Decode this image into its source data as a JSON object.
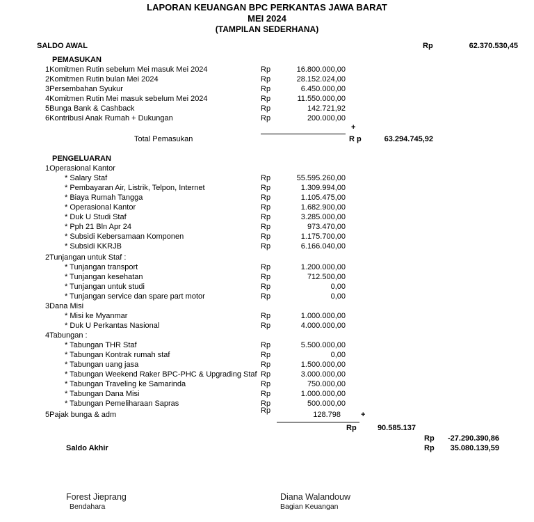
{
  "document": {
    "title_line1": "LAPORAN KEUANGAN BPC PERKANTAS JAWA BARAT",
    "title_line2": "MEI 2024",
    "title_line3": "(TAMPILAN SEDERHANA)",
    "saldo_awal": {
      "label": "SALDO AWAL",
      "currency": "Rp",
      "amount": "62.370.530,45"
    },
    "pemasukan": {
      "header": "PEMASUKAN",
      "items": [
        {
          "no": "1",
          "label": "Komitmen Rutin sebelum Mei masuk Mei 2024",
          "currency": "Rp",
          "amount": "16.800.000,00"
        },
        {
          "no": "2",
          "label": "Komitmen Rutin bulan Mei 2024",
          "currency": "Rp",
          "amount": "28.152.024,00"
        },
        {
          "no": "3",
          "label": "Persembahan Syukur",
          "currency": "Rp",
          "amount": "6.450.000,00"
        },
        {
          "no": "4",
          "label": "Komitmen Rutin Mei masuk sebelum Mei 2024",
          "currency": "Rp",
          "amount": "11.550.000,00"
        },
        {
          "no": "5",
          "label": "Bunga Bank & Cashback",
          "currency": "Rp",
          "amount": "142.721,92"
        },
        {
          "no": "6",
          "label": "Kontribusi Anak Rumah + Dukungan",
          "currency": "Rp",
          "amount": "200.000,00"
        }
      ],
      "plus_sign": "+",
      "total": {
        "label": "Total Pemasukan",
        "currency": "R p",
        "amount": "63.294.745,92"
      }
    },
    "pengeluaran": {
      "header": "PENGELUARAN",
      "bullet": "*",
      "groups": [
        {
          "no": "1",
          "label": "Operasional Kantor",
          "items": [
            {
              "label": "Salary Staf",
              "currency": "Rp",
              "amount": "55.595.260,00"
            },
            {
              "label": "Pembayaran Air, Listrik, Telpon, Internet",
              "currency": "Rp",
              "amount": "1.309.994,00"
            },
            {
              "label": "Biaya Rumah Tangga",
              "currency": "Rp",
              "amount": "1.105.475,00"
            },
            {
              "label": "Operasional Kantor",
              "currency": "Rp",
              "amount": "1.682.900,00"
            },
            {
              "label": "Duk U Studi Staf",
              "currency": "Rp",
              "amount": "3.285.000,00"
            },
            {
              "label": "Pph 21 Bln Apr 24",
              "currency": "Rp",
              "amount": "973.470,00"
            },
            {
              "label": "Subsidi Kebersamaan Komponen",
              "currency": "Rp",
              "amount": "1.175.700,00"
            },
            {
              "label": "Subsidi KKRJB",
              "currency": "Rp",
              "amount": "6.166.040,00"
            }
          ]
        },
        {
          "no": "2",
          "label": "Tunjangan untuk Staf :",
          "items": [
            {
              "label": "Tunjangan transport",
              "currency": "Rp",
              "amount": "1.200.000,00"
            },
            {
              "label": "Tunjangan kesehatan",
              "currency": "Rp",
              "amount": "712.500,00"
            },
            {
              "label": "Tunjangan untuk studi",
              "currency": "Rp",
              "amount": "0,00"
            },
            {
              "label": "Tunjangan service dan spare part motor",
              "currency": "Rp",
              "amount": "0,00"
            }
          ]
        },
        {
          "no": "3",
          "label": "Dana Misi",
          "items": [
            {
              "label": "Misi ke Myanmar",
              "currency": "Rp",
              "amount": "1.000.000,00"
            },
            {
              "label": "Duk U Perkantas Nasional",
              "currency": "Rp",
              "amount": "4.000.000,00"
            }
          ]
        },
        {
          "no": "4",
          "label": "Tabungan :",
          "items": [
            {
              "label": "Tabungan THR Staf",
              "currency": "Rp",
              "amount": "5.500.000,00"
            },
            {
              "label": "Tabungan Kontrak rumah staf",
              "currency": "Rp",
              "amount": "0,00"
            },
            {
              "label": "Tabungan uang jasa",
              "currency": "Rp",
              "amount": "1.500.000,00"
            },
            {
              "label": "Tabungan Weekend Raker BPC-PHC & Upgrading Staf",
              "currency": "Rp",
              "amount": "3.000.000,00"
            },
            {
              "label": "Tabungan Traveling ke Samarinda",
              "currency": "Rp",
              "amount": "750.000,00"
            },
            {
              "label": "Tabungan Dana Misi",
              "currency": "Rp",
              "amount": "1.000.000,00"
            },
            {
              "label": "Tabungan Pemeliharaan Sapras",
              "currency": "Rp",
              "amount": "500.000,00"
            }
          ]
        }
      ],
      "tax_item": {
        "no": "5",
        "label": "Pajak bunga & adm",
        "currency": "Rp",
        "amount": "128.798"
      },
      "plus_sign": "+",
      "total": {
        "currency": "Rp",
        "amount": "90.585.137"
      }
    },
    "summary": {
      "selisih": {
        "currency": "Rp",
        "amount": "-27.290.390,86"
      },
      "saldo_akhir": {
        "label": "Saldo Akhir",
        "currency": "Rp",
        "amount": "35.080.139,59"
      }
    },
    "signatures": [
      {
        "name": "Forest Jieprang",
        "role": "Bendahara"
      },
      {
        "name": "Diana Walandouw",
        "role": "Bagian Keuangan"
      }
    ]
  }
}
